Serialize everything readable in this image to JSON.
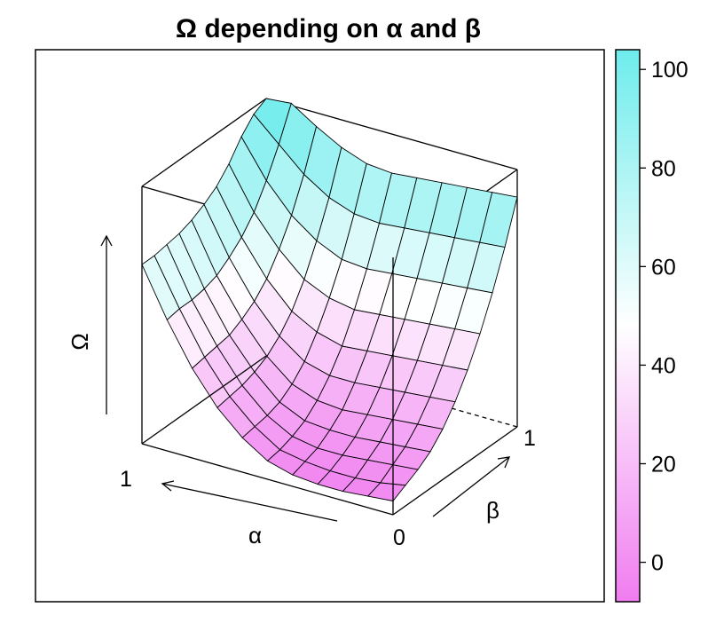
{
  "chart_data": {
    "type": "surface",
    "title": "Ω depending on α and β",
    "x_axis": {
      "label": "α",
      "ticks": [
        "0",
        "1"
      ],
      "range": [
        0,
        1
      ]
    },
    "y_axis": {
      "label": "β",
      "ticks": [
        "0",
        "1"
      ],
      "range": [
        0,
        1
      ]
    },
    "z_axis": {
      "label": "Ω"
    },
    "colorbar": {
      "ticks": [
        "0",
        "20",
        "40",
        "60",
        "80",
        "100"
      ],
      "range": [
        -8,
        104
      ],
      "low_color": "#f07cf0",
      "mid_color": "#ffffff",
      "high_color": "#6eecec"
    },
    "grid": {
      "alpha": [
        0,
        0.1,
        0.2,
        0.3,
        0.4,
        0.5,
        0.6,
        0.7,
        0.8,
        0.9,
        1
      ],
      "beta": [
        0,
        0.1,
        0.2,
        0.3,
        0.4,
        0.5,
        0.6,
        0.7,
        0.8,
        0.9,
        1
      ]
    },
    "surface_values": [
      [
        -2,
        1,
        4,
        8,
        14,
        22,
        32,
        44,
        58,
        74,
        92
      ],
      [
        -3,
        -1,
        3,
        7,
        13,
        21,
        31,
        43,
        57,
        73,
        91
      ],
      [
        -4,
        -2,
        2,
        6,
        12,
        20,
        30,
        42,
        56,
        72,
        90
      ],
      [
        -4,
        -2,
        1,
        5,
        11,
        19,
        29,
        41,
        55,
        71,
        89
      ],
      [
        -3,
        -1,
        1,
        5,
        10,
        18,
        28,
        40,
        54,
        70,
        88
      ],
      [
        0,
        1,
        3,
        6,
        11,
        18,
        27,
        39,
        53,
        69,
        87
      ],
      [
        7,
        8,
        9,
        11,
        15,
        21,
        30,
        41,
        54,
        70,
        88
      ],
      [
        17,
        18,
        19,
        21,
        24,
        29,
        36,
        46,
        59,
        74,
        92
      ],
      [
        31,
        32,
        33,
        34,
        37,
        41,
        47,
        56,
        67,
        81,
        98
      ],
      [
        49,
        50,
        50,
        51,
        53,
        57,
        62,
        69,
        79,
        91,
        105
      ],
      [
        70,
        70,
        71,
        72,
        74,
        77,
        81,
        87,
        95,
        101,
        104
      ]
    ]
  }
}
